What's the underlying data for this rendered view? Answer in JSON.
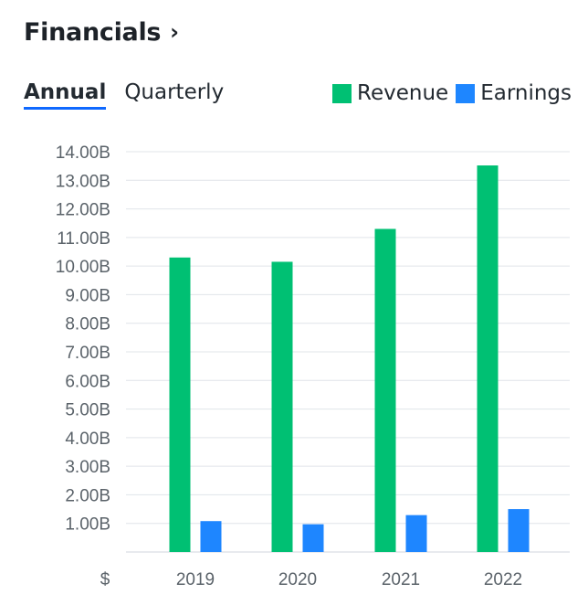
{
  "header": {
    "title": "Financials",
    "chevron": "›",
    "chevron_icon": "chevron-right-icon"
  },
  "tabs": [
    {
      "label": "Annual",
      "active": true
    },
    {
      "label": "Quarterly",
      "active": false
    }
  ],
  "colors": {
    "revenue": "#00c073",
    "earnings": "#1e86ff",
    "grid": "#e0e4e9",
    "tab_underline": "#0f69ff"
  },
  "chart_data": {
    "type": "bar",
    "categories": [
      "2019",
      "2020",
      "2021",
      "2022"
    ],
    "series": [
      {
        "name": "Revenue",
        "values": [
          10.3,
          10.15,
          11.3,
          13.52
        ]
      },
      {
        "name": "Earnings",
        "values": [
          1.08,
          0.97,
          1.29,
          1.5
        ]
      }
    ],
    "y_tick_labels": [
      "1.00B",
      "2.00B",
      "3.00B",
      "4.00B",
      "5.00B",
      "6.00B",
      "7.00B",
      "8.00B",
      "9.00B",
      "10.00B",
      "11.00B",
      "12.00B",
      "13.00B",
      "14.00B"
    ],
    "y_tick_values": [
      1,
      2,
      3,
      4,
      5,
      6,
      7,
      8,
      9,
      10,
      11,
      12,
      13,
      14
    ],
    "ylim": [
      0,
      14
    ],
    "unit_label": "$",
    "grid": true,
    "legend_position": "top-right"
  }
}
